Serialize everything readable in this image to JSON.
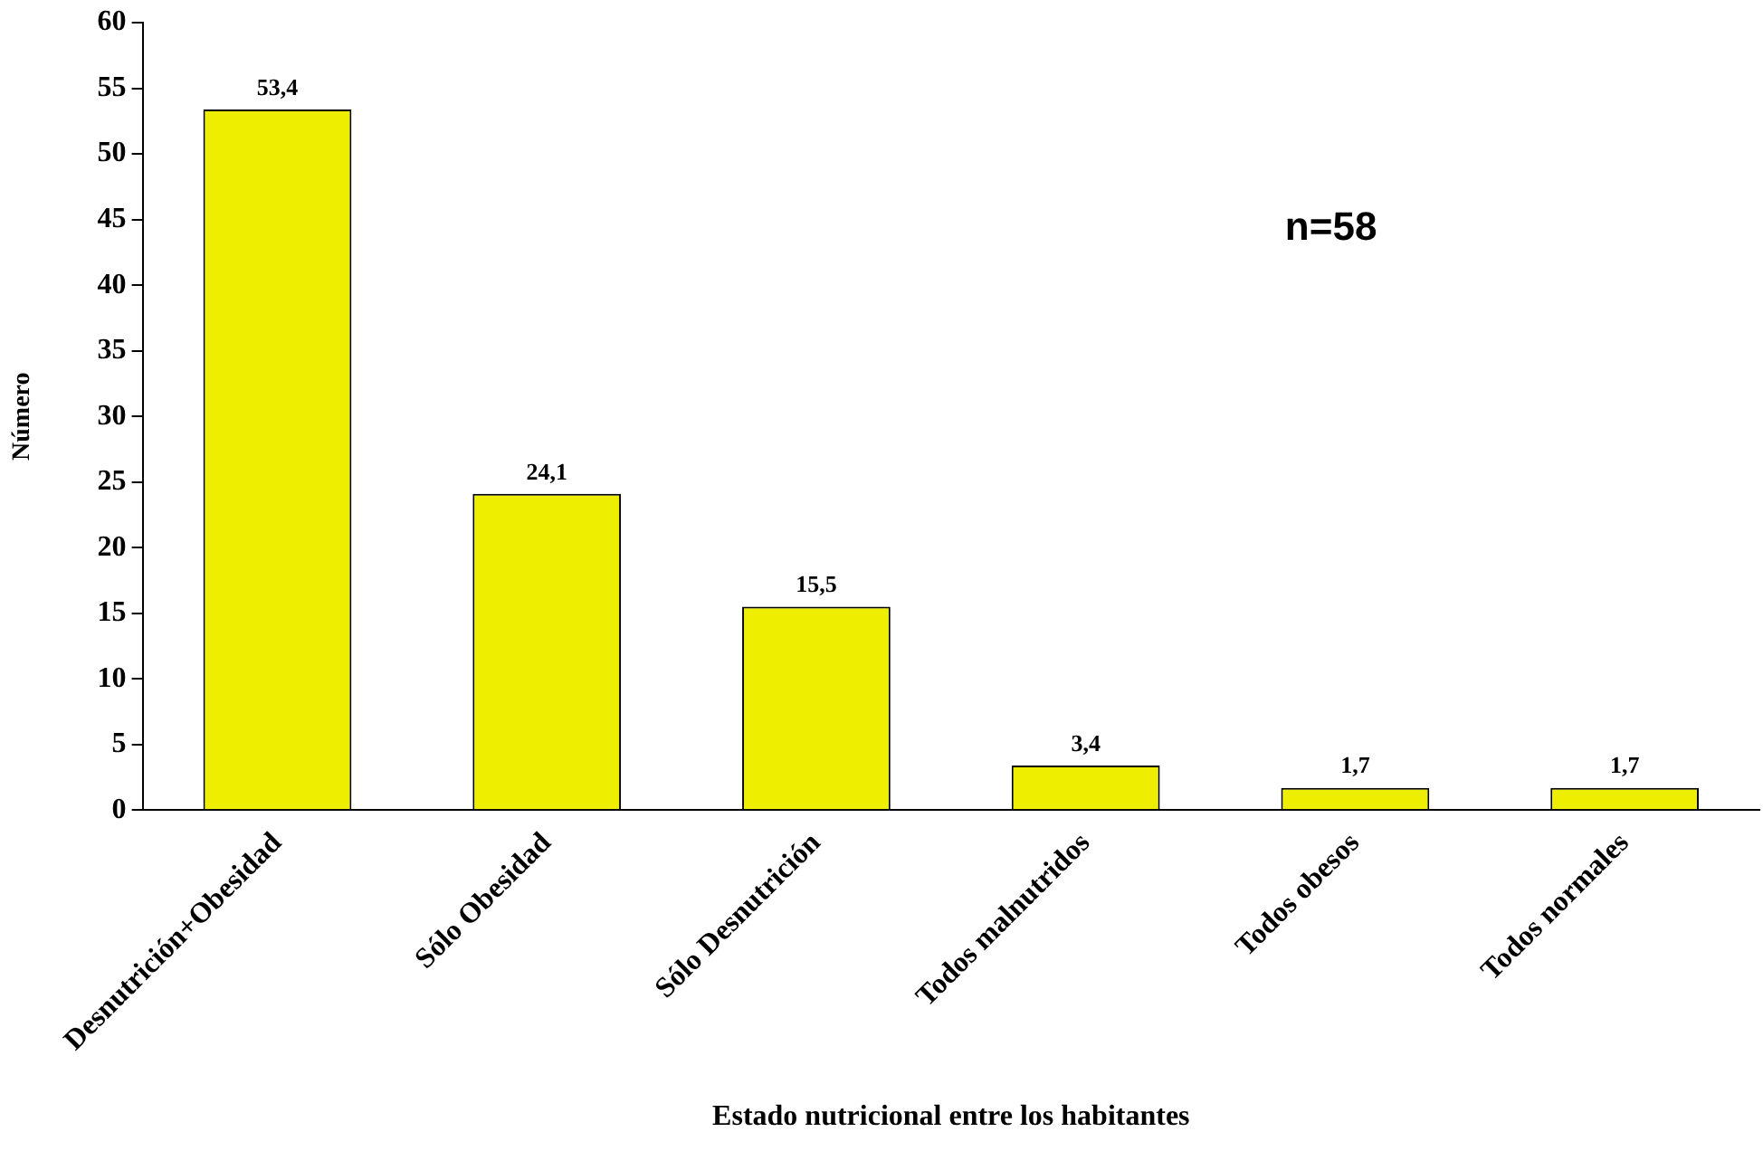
{
  "chart_data": {
    "type": "bar",
    "xlabel": "Estado nutricional entre los habitantes",
    "ylabel": "Número",
    "categories": [
      "Desnutrición+Obesidad",
      "Sólo Obesidad",
      "Sólo Desnutrición",
      "Todos malnutridos",
      "Todos obesos",
      "Todos normales"
    ],
    "values": [
      53.4,
      24.1,
      15.5,
      3.4,
      1.7,
      1.7
    ],
    "color": "#eeee00",
    "value_labels": [
      "53,4",
      "24,1",
      "15,5",
      "3,4",
      "1,7",
      "1,7"
    ],
    "ylim": [
      0,
      60
    ],
    "yticks": [
      0,
      5,
      10,
      15,
      20,
      25,
      30,
      35,
      40,
      45,
      50,
      55,
      60
    ],
    "grid": false,
    "legend": false,
    "annotations": [
      "n=58"
    ]
  }
}
